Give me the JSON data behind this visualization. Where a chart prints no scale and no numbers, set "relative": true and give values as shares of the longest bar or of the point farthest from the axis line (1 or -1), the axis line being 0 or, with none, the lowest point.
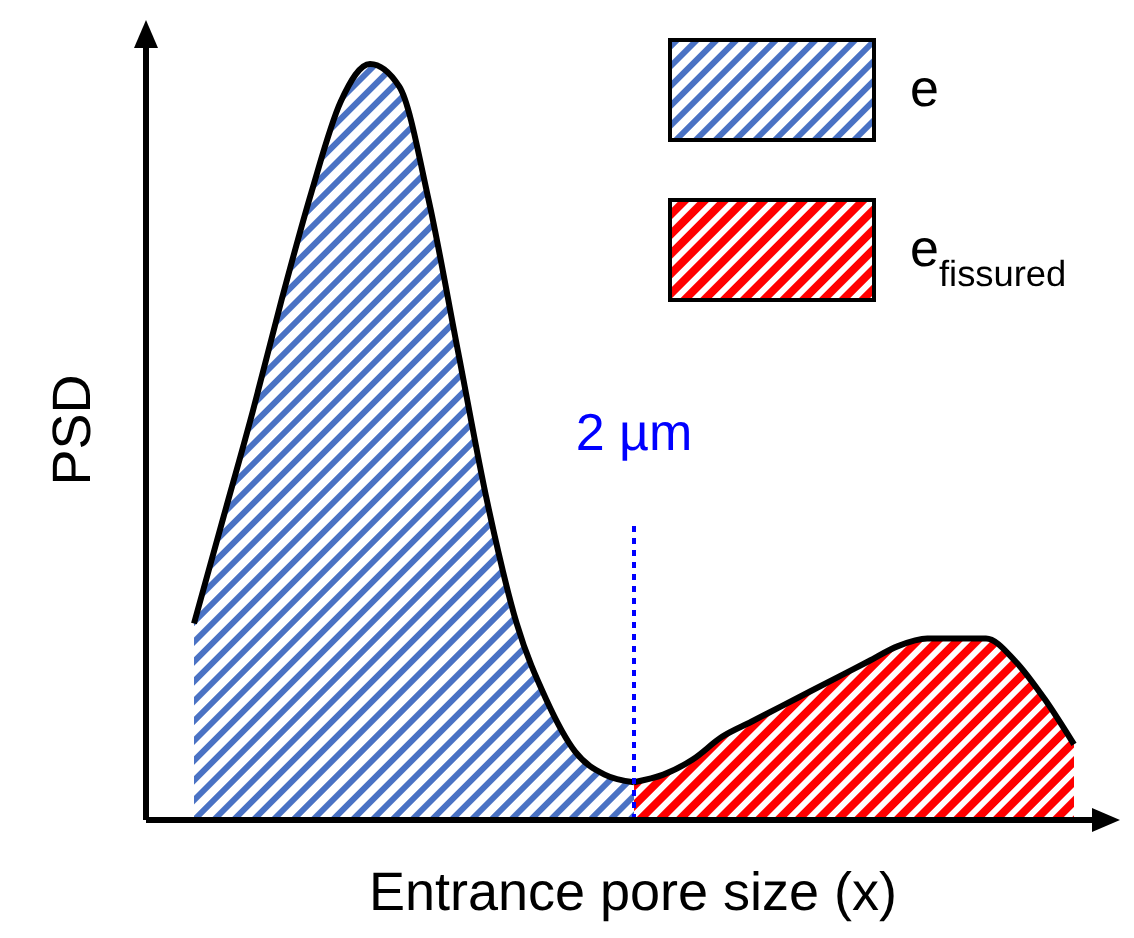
{
  "chart_data": {
    "type": "area",
    "relative": true,
    "xlabel": "Entrance pore size (x)",
    "ylabel": "PSD",
    "legend": "top right",
    "annotations": [
      "2 µm"
    ],
    "categories": [
      null,
      null,
      null,
      null,
      null,
      null,
      null,
      null,
      null,
      null,
      null,
      null,
      null,
      null,
      null,
      null,
      null,
      null,
      null,
      null,
      null,
      null,
      null,
      null,
      null,
      null,
      null,
      null,
      null,
      null,
      null
    ],
    "series": [
      {
        "name": "e",
        "color": "#4a72c4",
        "values": [
          0.26,
          0.4,
          0.54,
          0.69,
          0.83,
          0.95,
          1.0,
          0.97,
          0.82,
          0.62,
          0.42,
          0.26,
          0.16,
          0.09,
          0.06,
          0.05,
          null,
          null,
          null,
          null,
          null,
          null,
          null,
          null,
          null,
          null,
          null,
          null,
          null,
          null,
          null
        ]
      },
      {
        "name": "e$_{fissured}$",
        "color": "#ff0000",
        "values": [
          null,
          null,
          null,
          null,
          null,
          null,
          null,
          null,
          null,
          null,
          null,
          null,
          null,
          null,
          null,
          0.05,
          0.06,
          0.08,
          0.11,
          0.13,
          0.15,
          0.17,
          0.19,
          0.21,
          0.23,
          0.24,
          0.24,
          0.24,
          0.21,
          0.16,
          0.1
        ]
      }
    ]
  }
}
